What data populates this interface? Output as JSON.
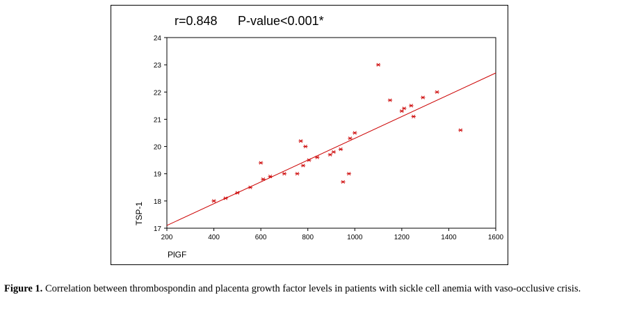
{
  "chart_data": {
    "type": "scatter",
    "stat_r": "r=0.848",
    "stat_p": "P-value<0.001*",
    "xlabel": "PlGF",
    "ylabel": "TSP-1",
    "xlim": [
      200,
      1600
    ],
    "ylim": [
      17,
      24
    ],
    "xticks": [
      200,
      400,
      600,
      800,
      1000,
      1200,
      1400,
      1600
    ],
    "yticks": [
      17,
      18,
      19,
      20,
      21,
      22,
      23,
      24
    ],
    "grid": false,
    "marker": "asterisk",
    "marker_color": "#cc0000",
    "line_color": "#cc0000",
    "regression_line": {
      "x": [
        200,
        1600
      ],
      "y": [
        17.1,
        22.7
      ]
    },
    "points": [
      {
        "x": 400,
        "y": 18.0
      },
      {
        "x": 450,
        "y": 18.1
      },
      {
        "x": 500,
        "y": 18.3
      },
      {
        "x": 555,
        "y": 18.5
      },
      {
        "x": 600,
        "y": 19.4
      },
      {
        "x": 610,
        "y": 18.8
      },
      {
        "x": 640,
        "y": 18.9
      },
      {
        "x": 700,
        "y": 19.0
      },
      {
        "x": 755,
        "y": 19.0
      },
      {
        "x": 770,
        "y": 20.2
      },
      {
        "x": 780,
        "y": 19.3
      },
      {
        "x": 790,
        "y": 20.0
      },
      {
        "x": 805,
        "y": 19.5
      },
      {
        "x": 840,
        "y": 19.6
      },
      {
        "x": 895,
        "y": 19.7
      },
      {
        "x": 910,
        "y": 19.8
      },
      {
        "x": 940,
        "y": 19.9
      },
      {
        "x": 950,
        "y": 18.7
      },
      {
        "x": 975,
        "y": 19.0
      },
      {
        "x": 980,
        "y": 20.3
      },
      {
        "x": 1000,
        "y": 20.5
      },
      {
        "x": 1100,
        "y": 23.0
      },
      {
        "x": 1150,
        "y": 21.7
      },
      {
        "x": 1200,
        "y": 21.3
      },
      {
        "x": 1210,
        "y": 21.4
      },
      {
        "x": 1240,
        "y": 21.5
      },
      {
        "x": 1250,
        "y": 21.1
      },
      {
        "x": 1290,
        "y": 21.8
      },
      {
        "x": 1350,
        "y": 22.0
      },
      {
        "x": 1450,
        "y": 20.6
      }
    ]
  },
  "caption": {
    "label": "Figure 1.",
    "text": "Correlation between thrombospondin and placenta growth factor levels in patients with sickle cell anemia with vaso-occlusive crisis."
  }
}
